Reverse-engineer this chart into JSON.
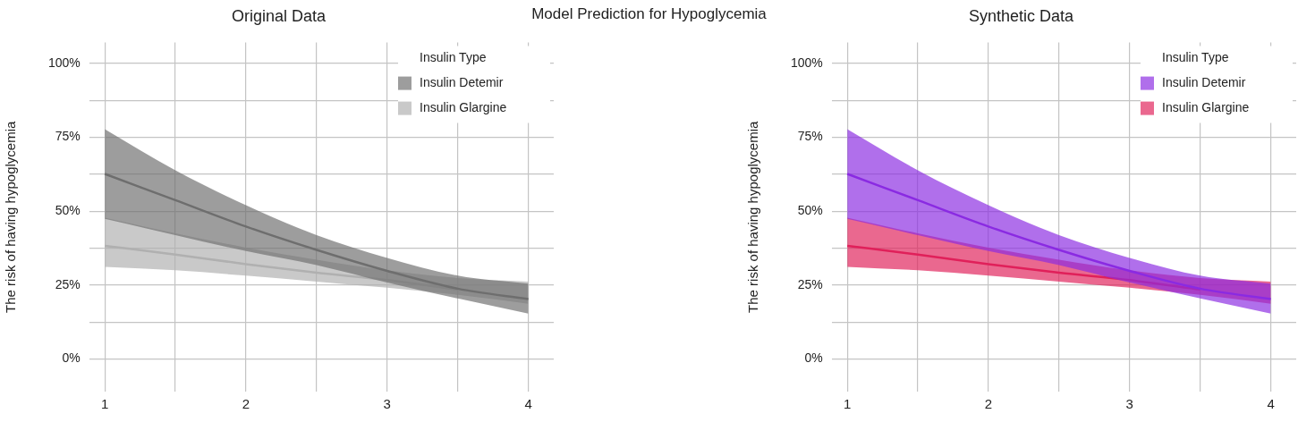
{
  "chart_data": [
    {
      "type": "line",
      "title": "Original Data",
      "annotations": [
        "Model Prediction for Hypoglycemia"
      ],
      "ylabel": "The risk of having hypoglycemia",
      "legend_title": "Insulin Type",
      "legend": "top right",
      "grid": true,
      "x": [
        1,
        1.5,
        2,
        2.5,
        3,
        3.5,
        4
      ],
      "xlim": [
        0.89,
        4.18
      ],
      "ylim": [
        -11,
        107
      ],
      "xticks": [
        1,
        {
          "value": 1.5,
          "label": null
        },
        2,
        {
          "value": 2.5,
          "label": null
        },
        3,
        {
          "value": 3.5,
          "label": null
        },
        4
      ],
      "yticks": [
        {
          "value": 0,
          "label": "0%"
        },
        {
          "value": 12.5,
          "label": null
        },
        {
          "value": 25,
          "label": "25%"
        },
        {
          "value": 37.5,
          "label": null
        },
        {
          "value": 50,
          "label": "50%"
        },
        {
          "value": 62.5,
          "label": null
        },
        {
          "value": 75,
          "label": "75%"
        },
        {
          "value": 87.5,
          "label": null
        },
        {
          "value": 100,
          "label": "100%"
        }
      ],
      "series": [
        {
          "name": "Insulin Detemir",
          "color": "#6e6e6e",
          "values": [
            62.6,
            53.7,
            44.8,
            36.9,
            29.8,
            23.8,
            20.3
          ],
          "upper": [
            77.7,
            63.8,
            52,
            41.9,
            34.2,
            28.2,
            25.5
          ],
          "lower": [
            47.4,
            41.9,
            36.5,
            31.8,
            25.9,
            20.5,
            15.4
          ]
        },
        {
          "name": "Insulin Glargine",
          "color": "#b0b0b0",
          "values": [
            38.3,
            35.3,
            32.1,
            29.2,
            26.7,
            23.5,
            null
          ],
          "upper": [
            47.8,
            42.5,
            37.7,
            33.6,
            30,
            27.4,
            26.2
          ],
          "lower": [
            31.2,
            30,
            28.2,
            26.2,
            24.1,
            21.7,
            18.7
          ]
        }
      ]
    },
    {
      "type": "line",
      "title": "Synthetic Data",
      "ylabel": "The risk of having hypoglycemia",
      "legend_title": "Insulin Type",
      "legend": "top right",
      "grid": true,
      "x": [
        1,
        1.5,
        2,
        2.5,
        3,
        3.5,
        4
      ],
      "xlim": [
        0.89,
        4.18
      ],
      "ylim": [
        -11,
        107
      ],
      "xticks": [
        1,
        {
          "value": 1.5,
          "label": null
        },
        2,
        {
          "value": 2.5,
          "label": null
        },
        3,
        {
          "value": 3.5,
          "label": null
        },
        4
      ],
      "yticks": [
        {
          "value": 0,
          "label": "0%"
        },
        {
          "value": 12.5,
          "label": null
        },
        {
          "value": 25,
          "label": "25%"
        },
        {
          "value": 37.5,
          "label": null
        },
        {
          "value": 50,
          "label": "50%"
        },
        {
          "value": 62.5,
          "label": null
        },
        {
          "value": 75,
          "label": "75%"
        },
        {
          "value": 87.5,
          "label": null
        },
        {
          "value": 100,
          "label": "100%"
        }
      ],
      "series": [
        {
          "name": "Insulin Detemir",
          "color": "#8a2be2",
          "values": [
            62.6,
            53.7,
            44.8,
            36.9,
            29.8,
            23.8,
            20.3
          ],
          "upper": [
            77.7,
            63.8,
            52,
            41.9,
            34.2,
            28.2,
            25.5
          ],
          "lower": [
            47.4,
            41.9,
            36.5,
            31.8,
            25.9,
            20.5,
            15.4
          ]
        },
        {
          "name": "Insulin Glargine",
          "color": "#e0205a",
          "values": [
            38.3,
            35.3,
            32.1,
            29.2,
            26.7,
            23.5,
            null
          ],
          "upper": [
            47.8,
            42.5,
            37.7,
            33.6,
            30,
            27.4,
            26.2
          ],
          "lower": [
            31.2,
            30,
            28.2,
            26.2,
            24.1,
            21.7,
            18.7
          ]
        }
      ]
    }
  ]
}
